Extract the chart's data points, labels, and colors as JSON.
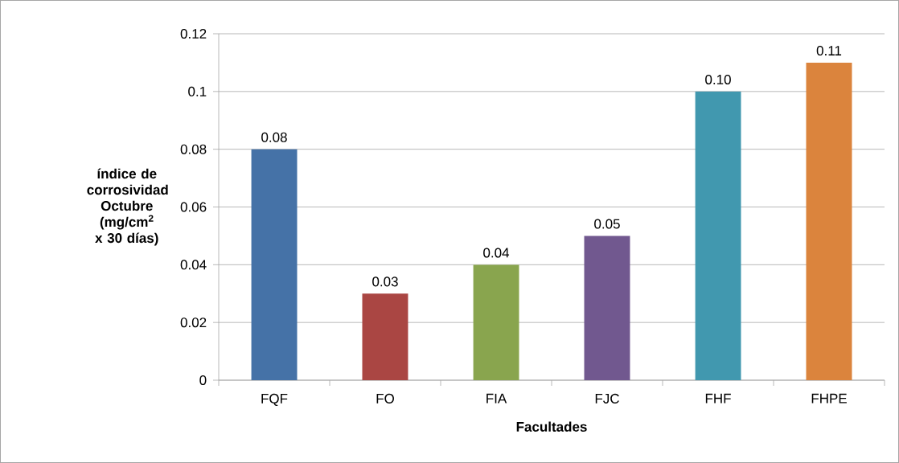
{
  "chart_data": {
    "type": "bar",
    "xlabel": "Facultades",
    "ylabel": "índice de corrosividad Octubre (mg/cm$^{2}$ x 30 días)",
    "categories": [
      "FQF",
      "FO",
      "FIA",
      "FJC",
      "FHF",
      "FHPE"
    ],
    "values": [
      0.08,
      0.03,
      0.04,
      0.05,
      0.1,
      0.11
    ],
    "value_labels": [
      "0.08",
      "0.03",
      "0.04",
      "0.05",
      "0.10",
      "0.11"
    ],
    "colors": [
      "#4572a7",
      "#aa4643",
      "#89a54e",
      "#71588f",
      "#4198af",
      "#db843d"
    ],
    "ylim": [
      0,
      0.12
    ],
    "yticks": [
      0,
      0.02,
      0.04,
      0.06,
      0.08,
      0.1,
      0.12
    ],
    "grid": "y"
  }
}
